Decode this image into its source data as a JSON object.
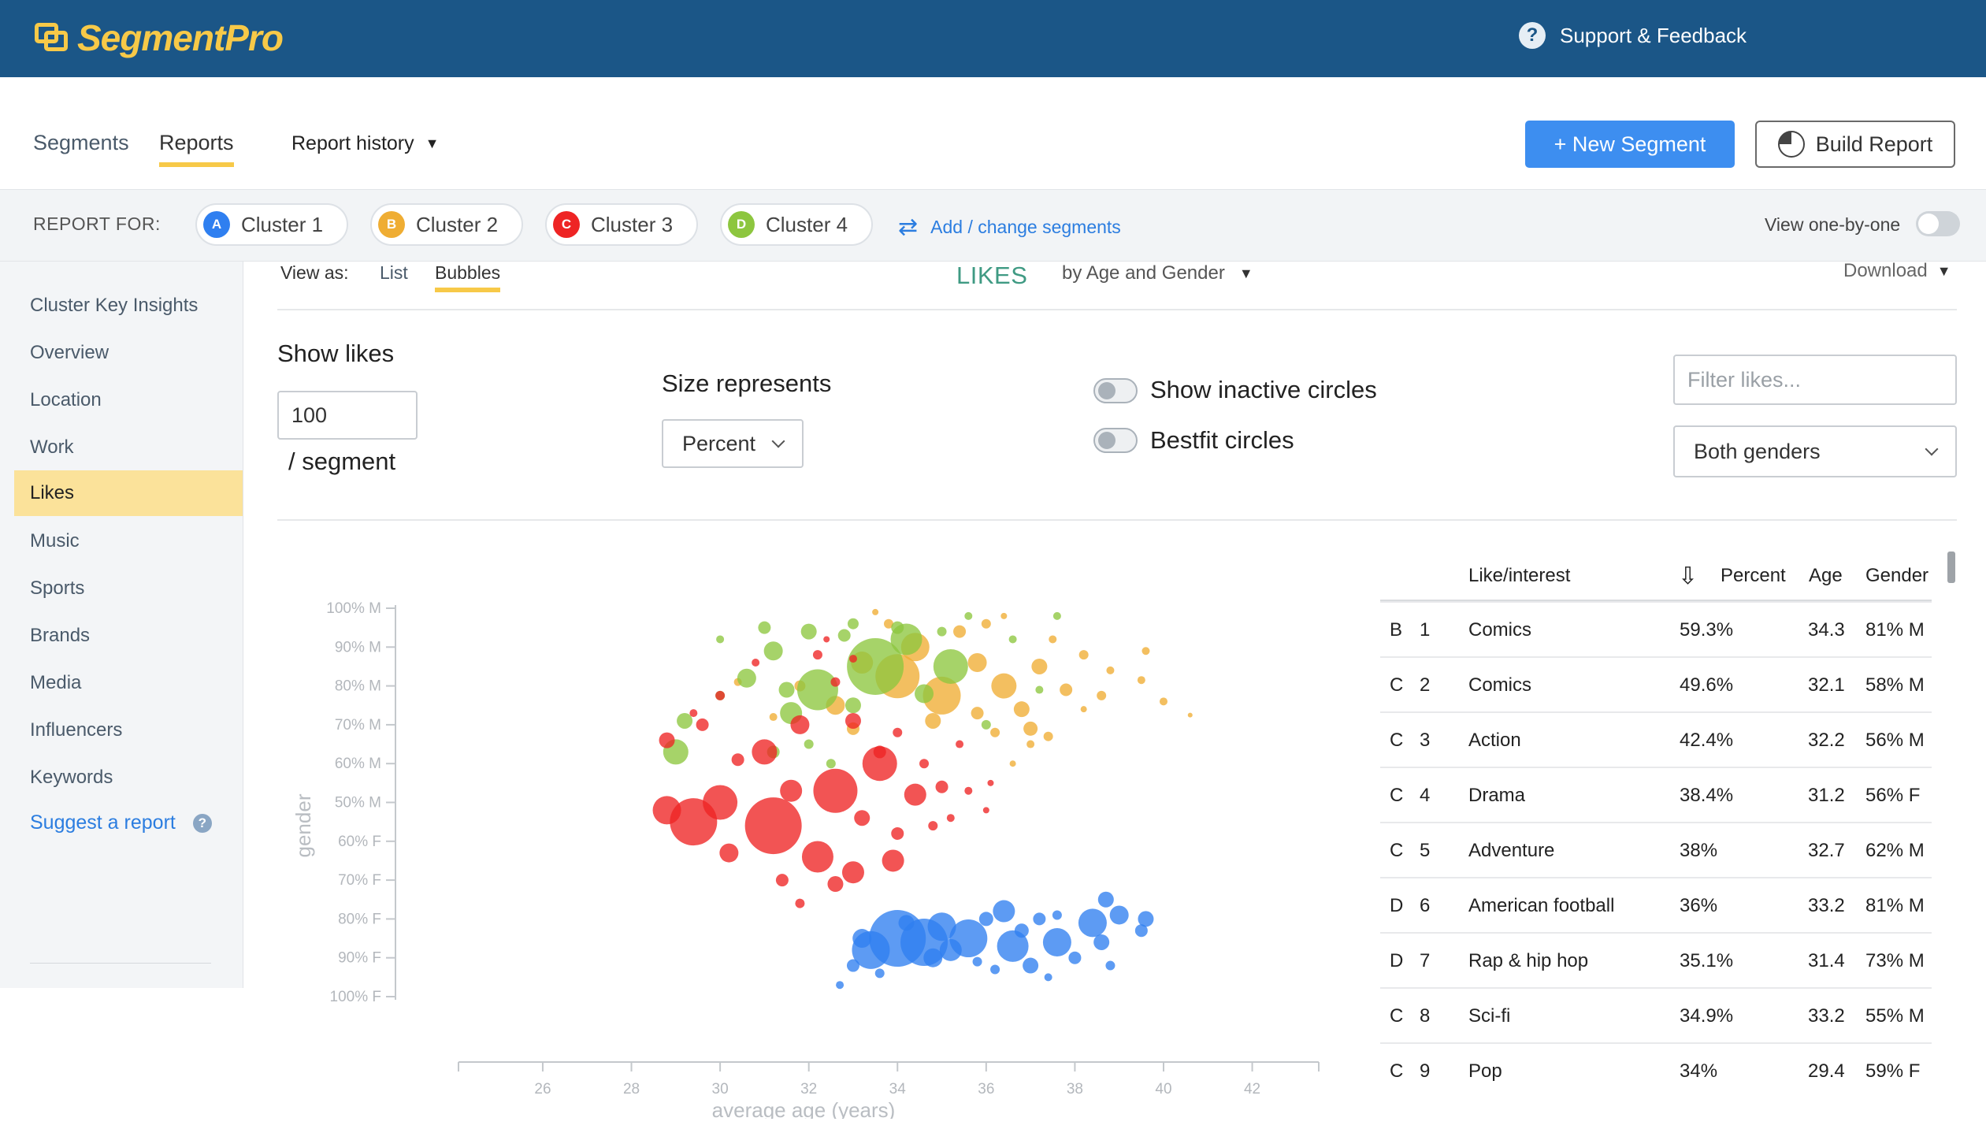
{
  "header": {
    "logo_text": "SegmentPro",
    "support_label": "Support & Feedback"
  },
  "nav": {
    "tabs": [
      {
        "label": "Segments"
      },
      {
        "label": "Reports",
        "active": true
      }
    ],
    "report_history": "Report history",
    "new_segment": "+ New Segment",
    "build_report": "Build Report"
  },
  "report_for": {
    "label": "REPORT FOR:",
    "clusters": [
      {
        "badge": "A",
        "label": "Cluster 1",
        "color": "#2f7ff0"
      },
      {
        "badge": "B",
        "label": "Cluster 2",
        "color": "#efad33"
      },
      {
        "badge": "C",
        "label": "Cluster 3",
        "color": "#ee2424"
      },
      {
        "badge": "D",
        "label": "Cluster 4",
        "color": "#8dc63f"
      }
    ],
    "add_change": "Add / change segments",
    "view_one_by_one": "View one-by-one"
  },
  "sidebar": {
    "items": [
      {
        "label": "Cluster Key Insights"
      },
      {
        "label": "Overview"
      },
      {
        "label": "Location"
      },
      {
        "label": "Work"
      },
      {
        "label": "Likes",
        "active": true
      },
      {
        "label": "Music"
      },
      {
        "label": "Sports"
      },
      {
        "label": "Brands"
      },
      {
        "label": "Media"
      },
      {
        "label": "Influencers"
      },
      {
        "label": "Keywords"
      }
    ],
    "suggest": "Suggest a report"
  },
  "view": {
    "view_as": "View as:",
    "list": "List",
    "bubbles": "Bubbles",
    "title": "LIKES",
    "by": "by Age and Gender",
    "download": "Download"
  },
  "controls": {
    "show_likes": "Show likes",
    "show_likes_value": "100",
    "per_segment": "/ segment",
    "size_represents": "Size represents",
    "size_value": "Percent",
    "show_inactive": "Show inactive circles",
    "bestfit": "Bestfit circles",
    "filter_placeholder": "Filter likes...",
    "genders_value": "Both genders"
  },
  "chart_data": {
    "type": "scatter",
    "xlabel": "average age (years)",
    "ylabel": "gender",
    "x_ticks": [
      "26",
      "28",
      "30",
      "32",
      "34",
      "36",
      "38",
      "40",
      "42"
    ],
    "y_ticks": [
      "100% M",
      "90% M",
      "80% M",
      "70% M",
      "60% M",
      "50% M",
      "60% F",
      "70% F",
      "80% F",
      "90% F",
      "100% F"
    ],
    "xlim": [
      24.1,
      43.5
    ],
    "series": [
      {
        "cluster": "A",
        "color": "#2f7ff0",
        "values": [
          [
            34.0,
            -0.7,
            36
          ],
          [
            34.6,
            -0.72,
            30
          ],
          [
            33.4,
            -0.76,
            24
          ],
          [
            35.6,
            -0.7,
            24
          ],
          [
            36.6,
            -0.74,
            20
          ],
          [
            35.0,
            -0.64,
            18
          ],
          [
            37.6,
            -0.72,
            18
          ],
          [
            36.4,
            -0.56,
            14
          ],
          [
            38.4,
            -0.62,
            18
          ],
          [
            39.0,
            -0.58,
            12
          ],
          [
            39.6,
            -0.6,
            10
          ],
          [
            37.0,
            -0.84,
            10
          ],
          [
            38.0,
            -0.8,
            8
          ],
          [
            33.0,
            -0.84,
            8
          ],
          [
            34.8,
            -0.8,
            12
          ],
          [
            36.0,
            -0.6,
            9
          ],
          [
            37.2,
            -0.6,
            8
          ],
          [
            38.6,
            -0.72,
            10
          ],
          [
            33.6,
            -0.88,
            6
          ],
          [
            34.2,
            -0.62,
            10
          ],
          [
            35.2,
            -0.76,
            14
          ],
          [
            36.8,
            -0.66,
            9
          ],
          [
            38.7,
            -0.5,
            10
          ],
          [
            39.5,
            -0.66,
            8
          ],
          [
            32.7,
            -0.94,
            5
          ],
          [
            37.6,
            -0.58,
            6
          ],
          [
            38.8,
            -0.84,
            6
          ],
          [
            33.2,
            -0.7,
            12
          ],
          [
            35.8,
            -0.82,
            6
          ],
          [
            36.2,
            -0.86,
            6
          ],
          [
            37.4,
            -0.9,
            5
          ]
        ]
      },
      {
        "cluster": "B",
        "color": "#efad33",
        "values": [
          [
            34.0,
            0.65,
            28
          ],
          [
            35.0,
            0.55,
            24
          ],
          [
            34.4,
            0.8,
            18
          ],
          [
            36.4,
            0.6,
            16
          ],
          [
            33.2,
            0.72,
            14
          ],
          [
            35.8,
            0.72,
            12
          ],
          [
            32.6,
            0.5,
            12
          ],
          [
            36.8,
            0.48,
            10
          ],
          [
            37.2,
            0.7,
            10
          ],
          [
            37.8,
            0.58,
            8
          ],
          [
            35.4,
            0.88,
            8
          ],
          [
            33.8,
            0.92,
            6
          ],
          [
            36.0,
            0.92,
            6
          ],
          [
            38.6,
            0.55,
            6
          ],
          [
            38.2,
            0.76,
            6
          ],
          [
            39.6,
            0.78,
            5
          ],
          [
            40.0,
            0.52,
            5
          ],
          [
            38.8,
            0.68,
            5
          ],
          [
            31.8,
            0.6,
            7
          ],
          [
            30.4,
            0.62,
            5
          ],
          [
            33.0,
            0.38,
            8
          ],
          [
            36.2,
            0.36,
            6
          ],
          [
            37.4,
            0.34,
            6
          ],
          [
            31.2,
            0.44,
            5
          ],
          [
            34.8,
            0.42,
            10
          ],
          [
            35.8,
            0.46,
            8
          ],
          [
            37.0,
            0.3,
            5
          ],
          [
            36.6,
            0.2,
            4
          ],
          [
            38.2,
            0.48,
            4
          ],
          [
            40.6,
            0.45,
            3
          ],
          [
            33.5,
            0.98,
            4
          ],
          [
            36.4,
            0.96,
            4
          ],
          [
            39.5,
            0.63,
            5
          ],
          [
            37.5,
            0.84,
            5
          ],
          [
            37.0,
            0.38,
            9
          ]
        ]
      },
      {
        "cluster": "D",
        "color": "#8dc63f",
        "values": [
          [
            33.5,
            0.7,
            36
          ],
          [
            32.2,
            0.58,
            26
          ],
          [
            34.2,
            0.84,
            20
          ],
          [
            35.2,
            0.7,
            22
          ],
          [
            31.6,
            0.46,
            14
          ],
          [
            30.6,
            0.64,
            12
          ],
          [
            31.2,
            0.78,
            12
          ],
          [
            32.0,
            0.88,
            10
          ],
          [
            29.0,
            0.26,
            16
          ],
          [
            29.2,
            0.42,
            10
          ],
          [
            31.0,
            0.9,
            8
          ],
          [
            34.0,
            0.9,
            8
          ],
          [
            35.0,
            0.88,
            6
          ],
          [
            36.6,
            0.84,
            5
          ],
          [
            37.6,
            0.96,
            5
          ],
          [
            32.8,
            0.86,
            8
          ],
          [
            33.0,
            0.5,
            10
          ],
          [
            31.2,
            0.26,
            8
          ],
          [
            32.0,
            0.3,
            6
          ],
          [
            30.0,
            0.84,
            5
          ],
          [
            37.2,
            0.58,
            5
          ],
          [
            35.6,
            0.96,
            5
          ],
          [
            30.0,
            0.55,
            6
          ],
          [
            36.0,
            0.4,
            6
          ],
          [
            32.5,
            0.2,
            6
          ],
          [
            31.5,
            0.58,
            10
          ],
          [
            34.6,
            0.56,
            12
          ],
          [
            33.0,
            0.92,
            7
          ]
        ]
      },
      {
        "cluster": "C",
        "color": "#ee2424",
        "values": [
          [
            29.4,
            -0.1,
            30
          ],
          [
            31.2,
            -0.12,
            36
          ],
          [
            32.6,
            0.06,
            28
          ],
          [
            33.6,
            0.2,
            22
          ],
          [
            30.0,
            0.0,
            22
          ],
          [
            28.8,
            -0.04,
            18
          ],
          [
            32.2,
            -0.28,
            20
          ],
          [
            33.0,
            -0.36,
            14
          ],
          [
            33.9,
            -0.3,
            14
          ],
          [
            31.0,
            0.26,
            16
          ],
          [
            34.4,
            0.04,
            14
          ],
          [
            31.8,
            0.4,
            12
          ],
          [
            33.0,
            0.42,
            10
          ],
          [
            30.2,
            -0.26,
            12
          ],
          [
            28.8,
            0.32,
            10
          ],
          [
            29.6,
            0.4,
            8
          ],
          [
            32.6,
            -0.42,
            10
          ],
          [
            31.4,
            -0.4,
            8
          ],
          [
            34.0,
            -0.16,
            8
          ],
          [
            35.0,
            0.08,
            8
          ],
          [
            30.0,
            0.55,
            6
          ],
          [
            32.2,
            0.76,
            6
          ],
          [
            32.6,
            0.62,
            6
          ],
          [
            33.0,
            0.74,
            5
          ],
          [
            34.6,
            0.2,
            6
          ],
          [
            35.4,
            0.3,
            5
          ],
          [
            34.0,
            0.36,
            6
          ],
          [
            33.6,
            0.26,
            8
          ],
          [
            35.6,
            0.06,
            5
          ],
          [
            36.0,
            -0.04,
            4
          ],
          [
            30.4,
            0.22,
            8
          ],
          [
            31.6,
            0.06,
            14
          ],
          [
            33.2,
            -0.08,
            10
          ],
          [
            29.4,
            0.46,
            5
          ],
          [
            31.8,
            -0.52,
            6
          ],
          [
            34.8,
            -0.12,
            6
          ],
          [
            32.4,
            0.84,
            4
          ],
          [
            36.1,
            0.1,
            4
          ],
          [
            35.2,
            -0.08,
            5
          ],
          [
            30.8,
            0.72,
            5
          ]
        ]
      }
    ]
  },
  "table": {
    "headers": {
      "like": "Like/interest",
      "percent": "Percent",
      "age": "Age",
      "gender": "Gender"
    },
    "rows": [
      {
        "cluster": "B",
        "rank": "1",
        "like": "Comics",
        "percent": "59.3%",
        "age": "34.3",
        "gender": "81% M"
      },
      {
        "cluster": "C",
        "rank": "2",
        "like": "Comics",
        "percent": "49.6%",
        "age": "32.1",
        "gender": "58% M"
      },
      {
        "cluster": "C",
        "rank": "3",
        "like": "Action",
        "percent": "42.4%",
        "age": "32.2",
        "gender": "56% M"
      },
      {
        "cluster": "C",
        "rank": "4",
        "like": "Drama",
        "percent": "38.4%",
        "age": "31.2",
        "gender": "56% F"
      },
      {
        "cluster": "C",
        "rank": "5",
        "like": "Adventure",
        "percent": "38%",
        "age": "32.7",
        "gender": "62% M"
      },
      {
        "cluster": "D",
        "rank": "6",
        "like": "American football",
        "percent": "36%",
        "age": "33.2",
        "gender": "81% M"
      },
      {
        "cluster": "D",
        "rank": "7",
        "like": "Rap & hip hop",
        "percent": "35.1%",
        "age": "31.4",
        "gender": "73% M"
      },
      {
        "cluster": "C",
        "rank": "8",
        "like": "Sci-fi",
        "percent": "34.9%",
        "age": "33.2",
        "gender": "55% M"
      },
      {
        "cluster": "C",
        "rank": "9",
        "like": "Pop",
        "percent": "34%",
        "age": "29.4",
        "gender": "59% F"
      }
    ]
  }
}
